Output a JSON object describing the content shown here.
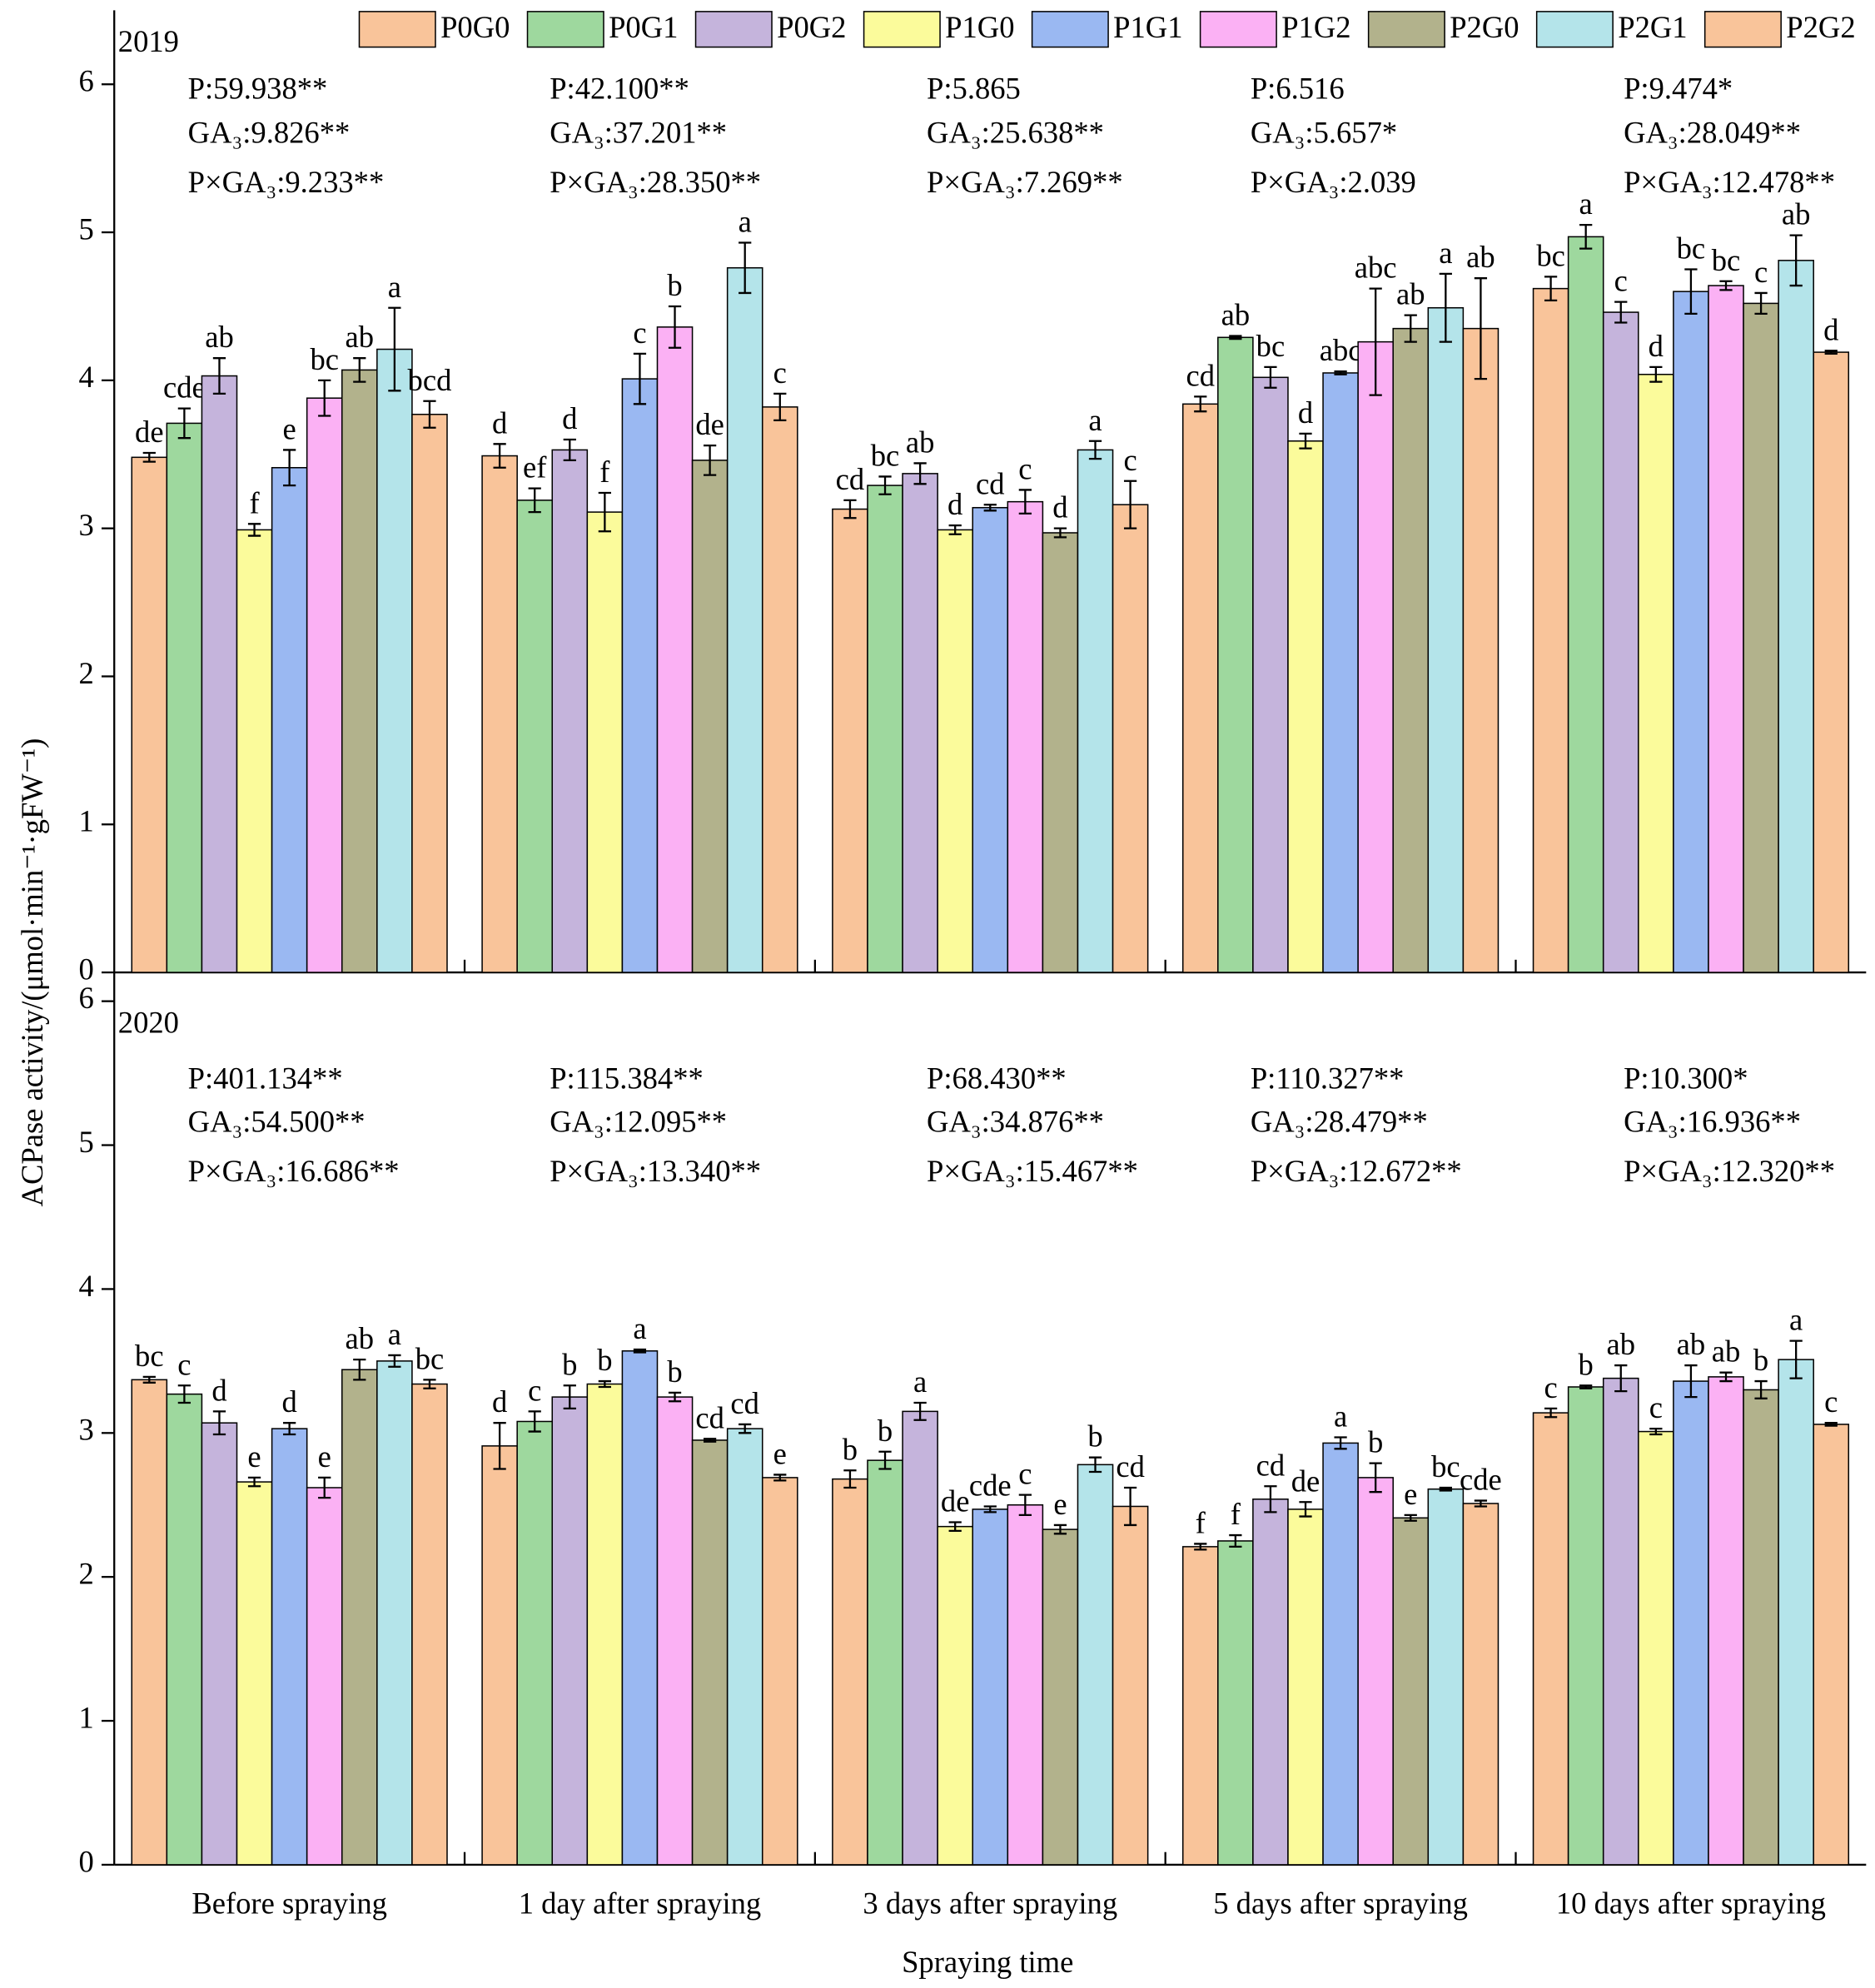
{
  "chart_data": [
    {
      "type": "bar",
      "panel_label": "2019",
      "ylabel": "ACPase activity/(μmol·min⁻¹·gFW⁻¹)",
      "categories": [
        "Before spraying",
        "1 day after spraying",
        "3 days after spraying",
        "5 days after spraying",
        "10 days after spraying"
      ],
      "ylim": [
        0,
        6.5
      ],
      "yticks": [
        0,
        1,
        2,
        3,
        4,
        5,
        6
      ],
      "stats": [
        [
          "P:59.938**",
          "GA₃:9.826**",
          "P×GA₃:9.233**"
        ],
        [
          "P:42.100**",
          "GA₃:37.201**",
          "P×GA₃:28.350**"
        ],
        [
          "P:5.865",
          "GA₃:25.638**",
          "P×GA₃:7.269**"
        ],
        [
          "P:6.516",
          "GA₃:5.657*",
          "P×GA₃:2.039"
        ],
        [
          "P:9.474*",
          "GA₃:28.049**",
          "P×GA₃:12.478**"
        ]
      ],
      "series": [
        {
          "name": "P0G0",
          "color": "#f9c49a",
          "values": [
            3.48,
            3.49,
            3.13,
            3.84,
            4.62
          ],
          "errors": [
            0.03,
            0.08,
            0.06,
            0.05,
            0.08
          ],
          "letters": [
            "de",
            "d",
            "cd",
            "cd",
            "bc"
          ]
        },
        {
          "name": "P0G1",
          "color": "#9ed89e",
          "values": [
            3.71,
            3.19,
            3.29,
            4.29,
            4.97
          ],
          "errors": [
            0.1,
            0.08,
            0.06,
            0.01,
            0.08
          ],
          "letters": [
            "cde",
            "ef",
            "bc",
            "ab",
            "a"
          ]
        },
        {
          "name": "P0G2",
          "color": "#c5b4dc",
          "values": [
            4.03,
            3.53,
            3.37,
            4.02,
            4.46
          ],
          "errors": [
            0.12,
            0.07,
            0.07,
            0.07,
            0.07
          ],
          "letters": [
            "ab",
            "d",
            "ab",
            "bc",
            "c"
          ]
        },
        {
          "name": "P1G0",
          "color": "#fbfb9b",
          "values": [
            2.99,
            3.11,
            2.99,
            3.59,
            4.04
          ],
          "errors": [
            0.04,
            0.13,
            0.03,
            0.05,
            0.05
          ],
          "letters": [
            "f",
            "f",
            "d",
            "d",
            "d"
          ]
        },
        {
          "name": "P1G1",
          "color": "#9ab8f2",
          "values": [
            3.41,
            4.01,
            3.14,
            4.05,
            4.6
          ],
          "errors": [
            0.12,
            0.17,
            0.02,
            0.01,
            0.15
          ],
          "letters": [
            "e",
            "c",
            "cd",
            "abc",
            "bc"
          ]
        },
        {
          "name": "P1G2",
          "color": "#fbb1f4",
          "values": [
            3.88,
            4.36,
            3.18,
            4.26,
            4.64
          ],
          "errors": [
            0.12,
            0.14,
            0.08,
            0.36,
            0.03
          ],
          "letters": [
            "bc",
            "b",
            "c",
            "abc",
            "bc"
          ]
        },
        {
          "name": "P2G0",
          "color": "#b2b28c",
          "values": [
            4.07,
            3.46,
            2.97,
            4.35,
            4.52
          ],
          "errors": [
            0.08,
            0.1,
            0.03,
            0.09,
            0.07
          ],
          "letters": [
            "ab",
            "de",
            "d",
            "ab",
            "c"
          ]
        },
        {
          "name": "P2G1",
          "color": "#b4e4ea",
          "values": [
            4.21,
            4.76,
            3.53,
            4.49,
            4.81
          ],
          "errors": [
            0.28,
            0.17,
            0.06,
            0.23,
            0.17
          ],
          "letters": [
            "a",
            "a",
            "a",
            "a",
            "ab"
          ]
        },
        {
          "name": "P2G2",
          "color": "#f9c49a",
          "values": [
            3.77,
            3.82,
            3.16,
            4.35,
            4.19
          ],
          "errors": [
            0.09,
            0.09,
            0.16,
            0.34,
            0.01
          ],
          "letters": [
            "bcd",
            "c",
            "c",
            "ab",
            "d"
          ]
        }
      ]
    },
    {
      "type": "bar",
      "panel_label": "2020",
      "xlabel": "Spraying time",
      "categories": [
        "Before spraying",
        "1 day after spraying",
        "3 days after spraying",
        "5 days after spraying",
        "10 days after spraying"
      ],
      "ylim": [
        0,
        6.2
      ],
      "yticks": [
        0,
        1,
        2,
        3,
        4,
        5,
        6
      ],
      "stats": [
        [
          "P:401.134**",
          "GA₃:54.500**",
          "P×GA₃:16.686**"
        ],
        [
          "P:115.384**",
          "GA₃:12.095**",
          "P×GA₃:13.340**"
        ],
        [
          "P:68.430**",
          "GA₃:34.876**",
          "P×GA₃:15.467**"
        ],
        [
          "P:110.327**",
          "GA₃:28.479**",
          "P×GA₃:12.672**"
        ],
        [
          "P:10.300*",
          "GA₃:16.936**",
          "P×GA₃:12.320**"
        ]
      ],
      "series": [
        {
          "name": "P0G0",
          "color": "#f9c49a",
          "values": [
            3.37,
            2.91,
            2.68,
            2.21,
            3.14
          ],
          "errors": [
            0.02,
            0.16,
            0.06,
            0.02,
            0.03
          ],
          "letters": [
            "bc",
            "d",
            "b",
            "f",
            "c"
          ]
        },
        {
          "name": "P0G1",
          "color": "#9ed89e",
          "values": [
            3.27,
            3.08,
            2.81,
            2.25,
            3.32
          ],
          "errors": [
            0.06,
            0.07,
            0.06,
            0.04,
            0.01
          ],
          "letters": [
            "c",
            "c",
            "b",
            "f",
            "b"
          ]
        },
        {
          "name": "P0G2",
          "color": "#c5b4dc",
          "values": [
            3.07,
            3.25,
            3.15,
            2.54,
            3.38
          ],
          "errors": [
            0.08,
            0.08,
            0.06,
            0.09,
            0.09
          ],
          "letters": [
            "d",
            "b",
            "a",
            "cd",
            "ab"
          ]
        },
        {
          "name": "P1G0",
          "color": "#fbfb9b",
          "values": [
            2.66,
            3.34,
            2.35,
            2.47,
            3.01
          ],
          "errors": [
            0.03,
            0.02,
            0.03,
            0.05,
            0.02
          ],
          "letters": [
            "e",
            "b",
            "de",
            "de",
            "c"
          ]
        },
        {
          "name": "P1G1",
          "color": "#9ab8f2",
          "values": [
            3.03,
            3.57,
            2.47,
            2.93,
            3.36
          ],
          "errors": [
            0.04,
            0.01,
            0.02,
            0.04,
            0.11
          ],
          "letters": [
            "d",
            "a",
            "cde",
            "a",
            "ab"
          ]
        },
        {
          "name": "P1G2",
          "color": "#fbb1f4",
          "values": [
            2.62,
            3.25,
            2.5,
            2.69,
            3.39
          ],
          "errors": [
            0.07,
            0.03,
            0.07,
            0.1,
            0.03
          ],
          "letters": [
            "e",
            "b",
            "c",
            "b",
            "ab"
          ]
        },
        {
          "name": "P2G0",
          "color": "#b2b28c",
          "values": [
            3.44,
            2.95,
            2.33,
            2.41,
            3.3
          ],
          "errors": [
            0.07,
            0.01,
            0.03,
            0.02,
            0.06
          ],
          "letters": [
            "ab",
            "cd",
            "e",
            "e",
            "b"
          ]
        },
        {
          "name": "P2G1",
          "color": "#b4e4ea",
          "values": [
            3.5,
            3.03,
            2.78,
            2.61,
            3.51
          ],
          "errors": [
            0.04,
            0.03,
            0.05,
            0.01,
            0.13
          ],
          "letters": [
            "a",
            "cd",
            "b",
            "bc",
            "a"
          ]
        },
        {
          "name": "P2G2",
          "color": "#f9c49a",
          "values": [
            3.34,
            2.69,
            2.49,
            2.51,
            3.06
          ],
          "errors": [
            0.03,
            0.02,
            0.13,
            0.02,
            0.01
          ],
          "letters": [
            "bc",
            "e",
            "cd",
            "cde",
            "c"
          ]
        }
      ]
    }
  ]
}
